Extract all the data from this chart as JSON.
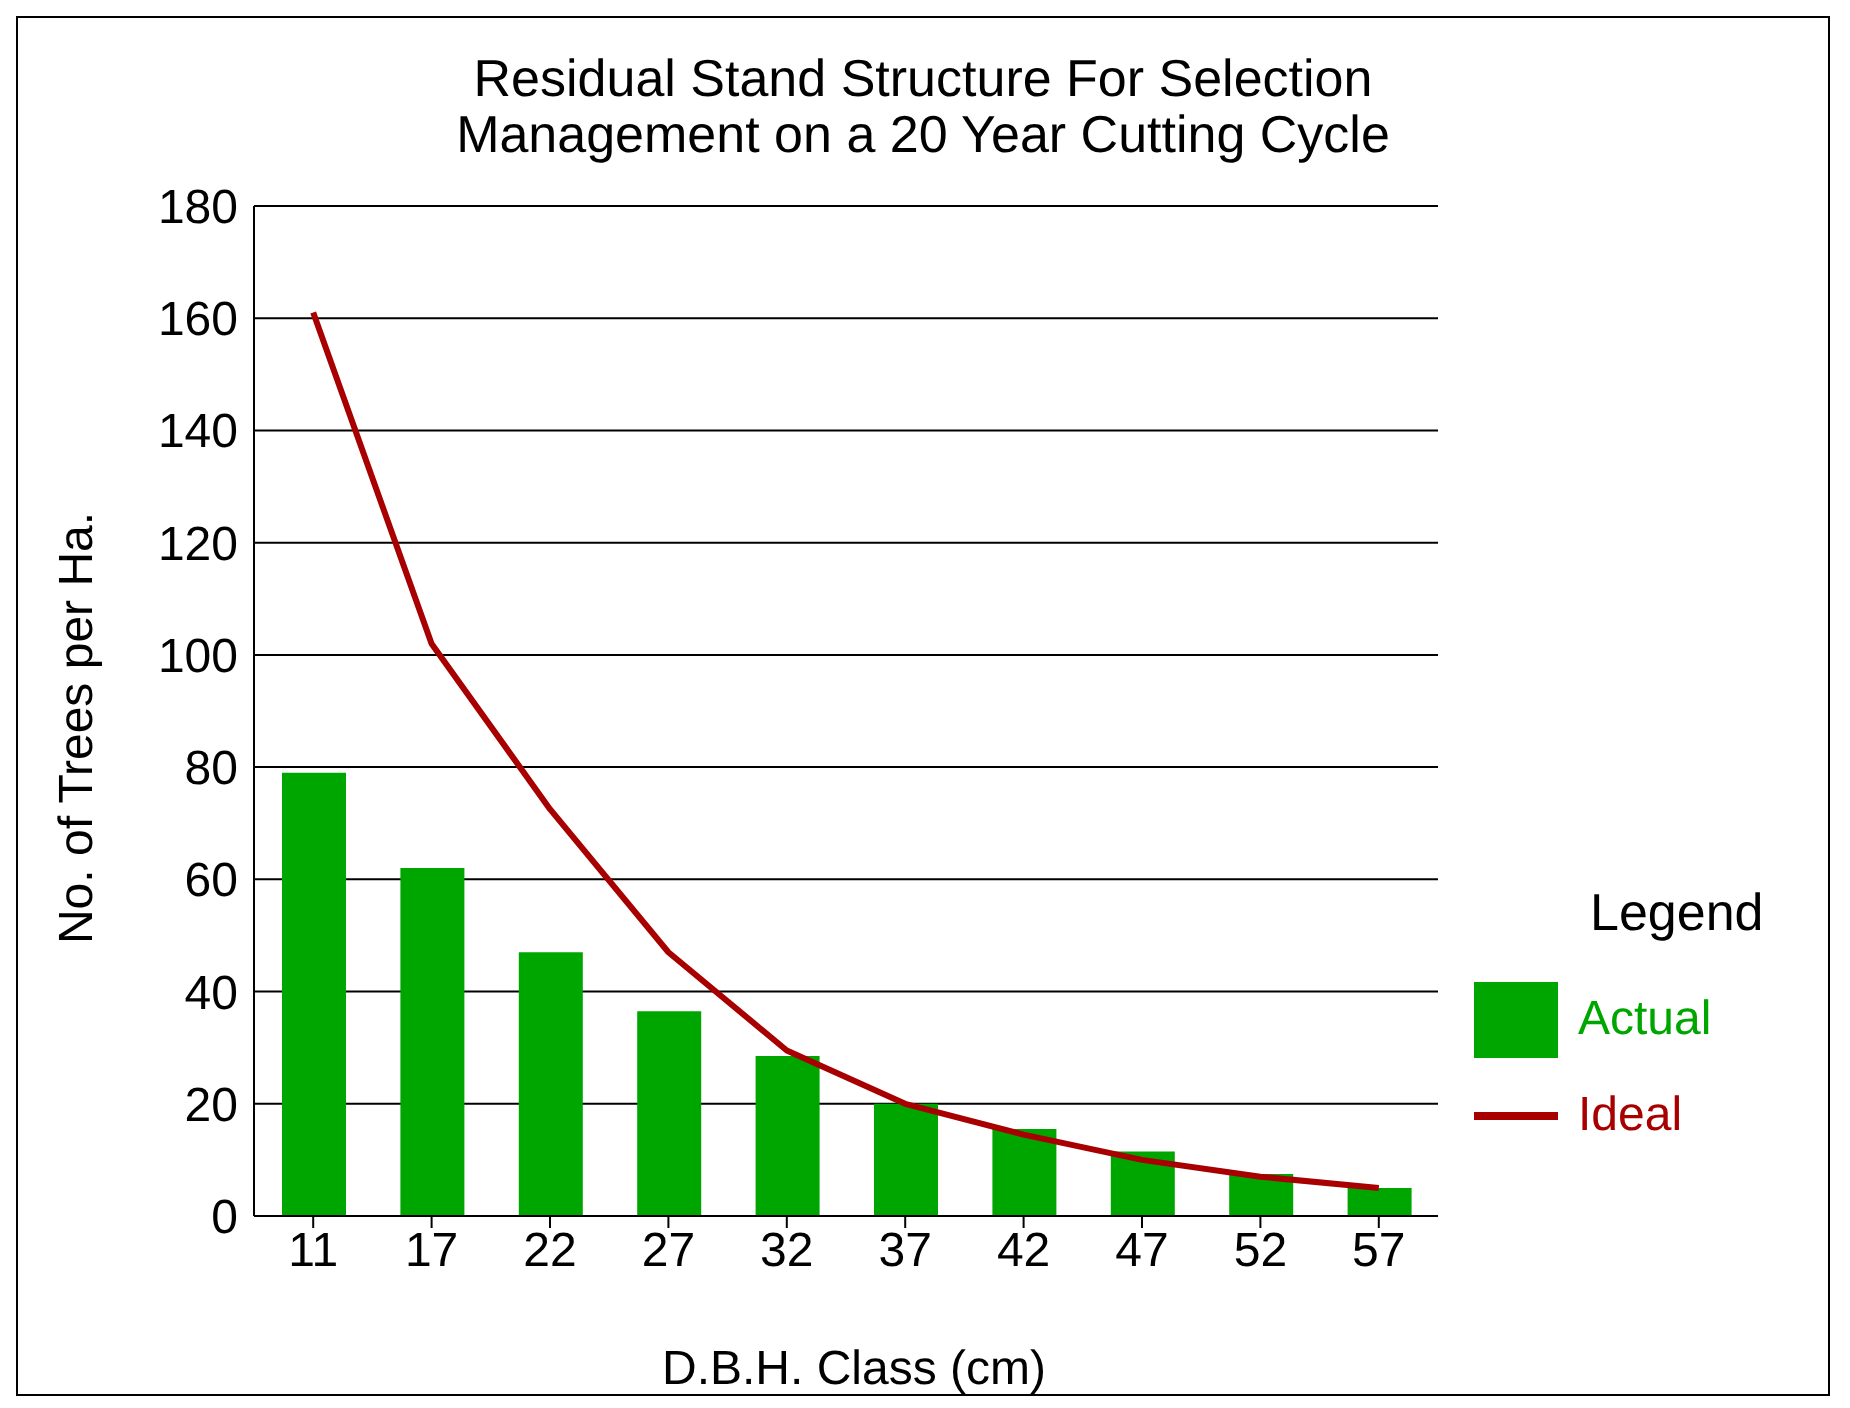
{
  "chart_data": {
    "type": "bar",
    "title": "Residual Stand Structure For Selection\nManagement on a 20 Year Cutting Cycle",
    "xlabel": "D.B.H. Class (cm)",
    "ylabel": "No. of Trees per Ha.",
    "legend_title": "Legend",
    "categories": [
      "11",
      "17",
      "22",
      "27",
      "32",
      "37",
      "42",
      "47",
      "52",
      "57"
    ],
    "series": [
      {
        "name": "Actual",
        "color": "#00a600",
        "values": [
          79,
          62,
          47,
          36.5,
          28.5,
          20,
          15.5,
          11.5,
          7.5,
          5
        ]
      },
      {
        "name": "Ideal",
        "type": "line",
        "color": "#a80000",
        "values": [
          161,
          102,
          72.5,
          47,
          29.5,
          20,
          14.5,
          10,
          7,
          5
        ]
      }
    ],
    "ylim": [
      0,
      180
    ],
    "yticks": [
      0,
      20,
      40,
      60,
      80,
      100,
      120,
      140,
      160,
      180
    ],
    "grid": "y",
    "legend": "right",
    "marker": "none",
    "line_style": "solid"
  }
}
